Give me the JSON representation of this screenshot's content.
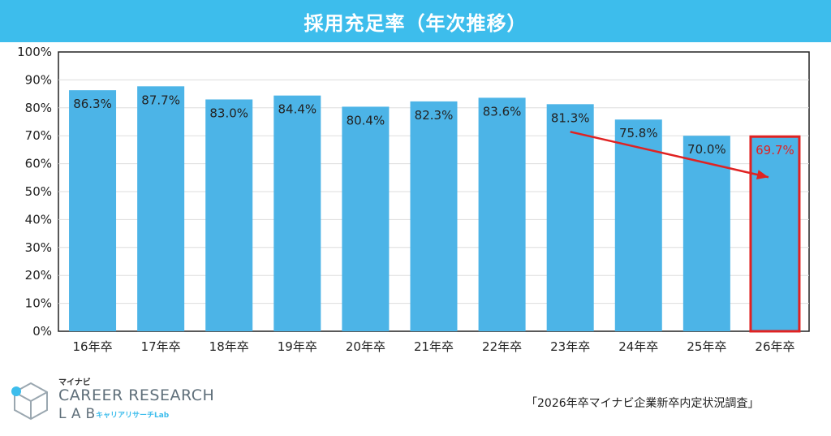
{
  "header": {
    "title": "採用充足率（年次推移）"
  },
  "chart_data": {
    "type": "bar",
    "title": "採用充足率（年次推移）",
    "categories": [
      "16年卒",
      "17年卒",
      "18年卒",
      "19年卒",
      "20年卒",
      "21年卒",
      "22年卒",
      "23年卒",
      "24年卒",
      "25年卒",
      "26年卒"
    ],
    "values": [
      86.3,
      87.7,
      83.0,
      84.4,
      80.4,
      82.3,
      83.6,
      81.3,
      75.8,
      70.0,
      69.7
    ],
    "data_labels": [
      "86.3%",
      "87.7%",
      "83.0%",
      "84.4%",
      "80.4%",
      "82.3%",
      "83.6%",
      "81.3%",
      "75.8%",
      "70.0%",
      "69.7%"
    ],
    "y_ticks": [
      "0%",
      "10%",
      "20%",
      "30%",
      "40%",
      "50%",
      "60%",
      "70%",
      "80%",
      "90%",
      "100%"
    ],
    "ylim": [
      0,
      100
    ],
    "grid": true,
    "highlight_index": 10,
    "trend_arrow": {
      "from_category": "23年卒",
      "to_category": "26年卒",
      "color": "#e02222"
    },
    "colors": {
      "bar": "#4cb4e7",
      "highlight": "#e02222",
      "label": "#222222"
    }
  },
  "footer": {
    "logo_small": "マイナビ",
    "logo_main": "CAREER RESEARCH",
    "logo_lab": "LAB",
    "logo_sub": "キャリアリサーチLab",
    "source": "「2026年卒マイナビ企業新卒内定状況調査」"
  }
}
